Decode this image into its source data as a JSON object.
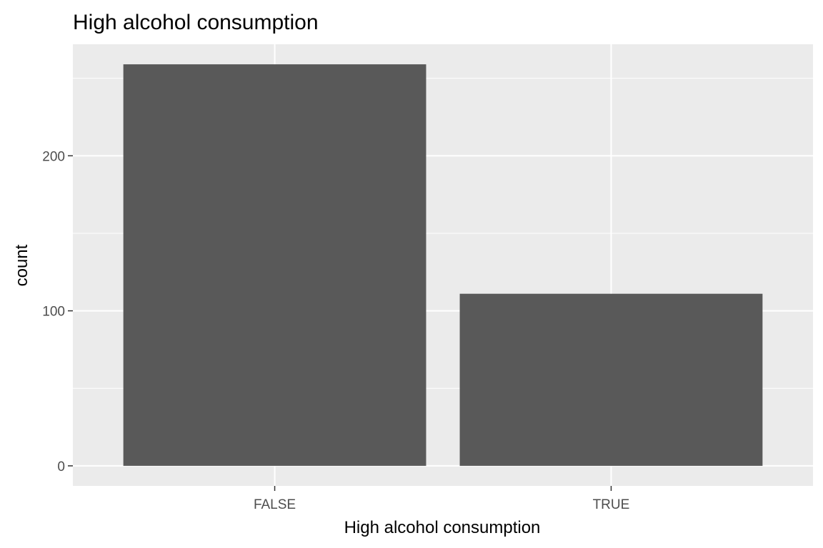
{
  "chart_data": {
    "type": "bar",
    "title": "High alcohol consumption",
    "xlabel": "High alcohol consumption",
    "ylabel": "count",
    "categories": [
      "FALSE",
      "TRUE"
    ],
    "values": [
      259,
      111
    ],
    "ylim": [
      -12.95,
      271.95
    ],
    "yticks": [
      0,
      100,
      200
    ],
    "ytick_labels": [
      "0",
      "100",
      "200"
    ],
    "grid": true,
    "colors": {
      "bar": "#595959",
      "panel_background": "#ebebeb",
      "grid_line": "#ffffff",
      "tick_text": "#4d4d4d",
      "tick_mark": "#333333"
    }
  }
}
